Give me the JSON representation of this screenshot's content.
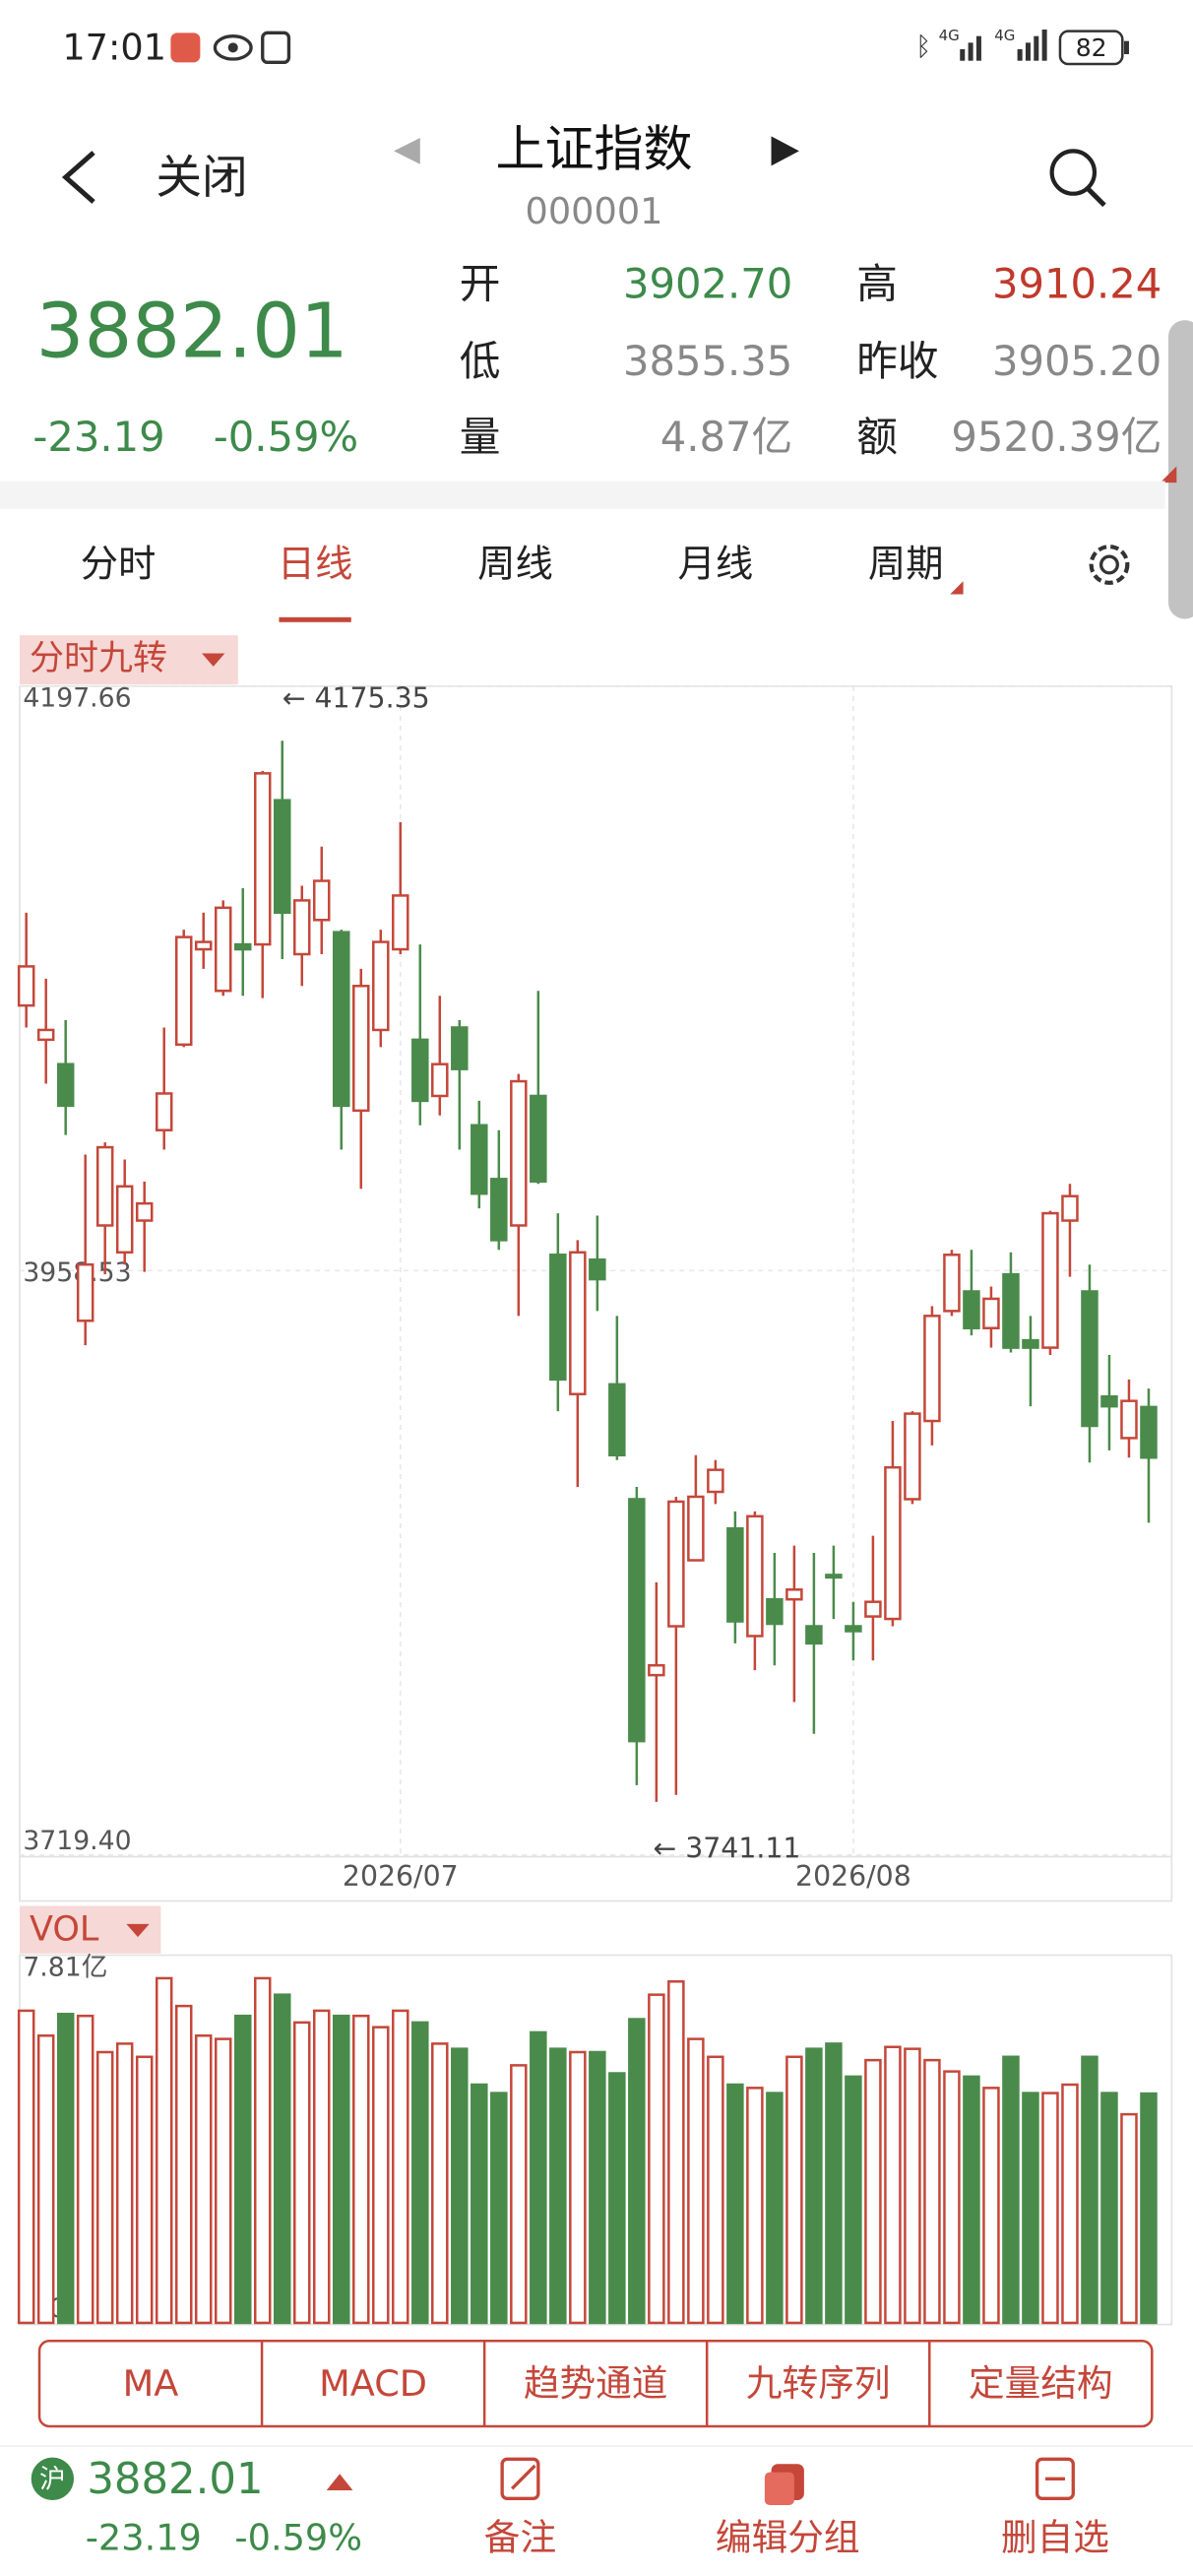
{
  "status_bar": {
    "time": "17:01",
    "network": [
      "4G",
      "4G"
    ],
    "battery": "82"
  },
  "header": {
    "back": "关闭",
    "title": "上证指数",
    "code": "000001"
  },
  "quote": {
    "price": "3882.01",
    "change": "-23.19",
    "change_pct": "-0.59%",
    "fields": [
      {
        "label": "开",
        "value": "3902.70",
        "color": "#3d8a4a"
      },
      {
        "label": "高",
        "value": "3910.24",
        "color": "#c0392b"
      },
      {
        "label": "低",
        "value": "3855.35",
        "color": "#888888"
      },
      {
        "label": "昨收",
        "value": "3905.20",
        "color": "#888888"
      },
      {
        "label": "量",
        "value": "4.87亿",
        "color": "#888888"
      },
      {
        "label": "额",
        "value": "9520.39亿",
        "color": "#888888"
      }
    ]
  },
  "tabs": [
    "分时",
    "日线",
    "周线",
    "月线",
    "周期"
  ],
  "active_tab": 1,
  "chart_data": [
    {
      "type": "candlestick",
      "indicator": "分时九转",
      "up_color": "#c4473a",
      "down_color": "#4a8b4b",
      "grid": true,
      "categories": [
        null,
        null,
        null,
        null,
        null,
        null,
        null,
        null,
        null,
        null,
        null,
        null,
        null,
        null,
        null,
        null,
        null,
        null,
        null,
        "2026/07",
        null,
        null,
        null,
        null,
        null,
        null,
        null,
        null,
        null,
        null,
        null,
        null,
        null,
        null,
        null,
        null,
        null,
        null,
        null,
        null,
        null,
        null,
        "2026/08",
        null,
        null,
        null,
        null,
        null,
        null,
        null,
        null,
        null,
        null,
        null,
        null,
        null,
        null,
        null
      ],
      "open": [
        4067,
        4053,
        4043,
        3938,
        3977,
        3966,
        3979,
        4016,
        4051,
        4090,
        4073,
        4092,
        4092,
        4151,
        4088,
        4102,
        4097,
        4024,
        4057,
        4090,
        4053,
        4030,
        4058,
        4018,
        3996,
        3977,
        4030,
        3965,
        3908,
        3963,
        3912,
        3865,
        3793,
        3813,
        3840,
        3868,
        3853,
        3809,
        3824,
        3824,
        3813,
        3834,
        3813,
        3817,
        3816,
        3865,
        3897,
        3942,
        3950,
        3935,
        3957,
        3930,
        3927,
        3979,
        3950,
        3907,
        3890,
        3902.7
      ],
      "high": [
        4105,
        4078,
        4061,
        4006,
        4011,
        4004,
        3995,
        4058,
        4098,
        4105,
        4110,
        4115,
        4163,
        4175.35,
        4116,
        4132,
        4098,
        4082,
        4098,
        4142,
        4092,
        4071,
        4061,
        4028,
        4016,
        4039,
        4073,
        3982,
        3971,
        3981,
        3940,
        3870,
        3831,
        3866,
        3883,
        3881,
        3860,
        3860,
        3843,
        3846,
        3843,
        3846,
        3823,
        3850,
        3897,
        3901,
        3944,
        3967,
        3967,
        3952,
        3966,
        3940,
        3983,
        3994,
        3961,
        3924,
        3914,
        3910.24
      ],
      "low": [
        4058,
        4035,
        4014,
        3928,
        3957,
        3961,
        3958,
        4008,
        4050,
        4082,
        4071,
        4071,
        4070,
        4086,
        4075,
        4088,
        4008,
        3992,
        4050,
        4088,
        4018,
        4022,
        4008,
        3984,
        3967,
        3940,
        3994,
        3901,
        3870,
        3942,
        3881,
        3748,
        3741.11,
        3744,
        3840,
        3863,
        3806,
        3795,
        3797,
        3782,
        3769,
        3816,
        3799,
        3799,
        3813,
        3863,
        3887,
        3940,
        3932,
        3927,
        3925,
        3903,
        3924,
        3956,
        3880,
        3885,
        3882,
        3855.35
      ],
      "close": [
        4083,
        4057,
        4026,
        3961,
        4009,
        3993,
        3986,
        4031,
        4095,
        4093,
        4107,
        4090,
        4162,
        4105,
        4110,
        4118,
        4026,
        4075,
        4093,
        4112,
        4028,
        4043,
        4041,
        3990,
        3971,
        4036,
        3995,
        3914,
        3966,
        3955,
        3883,
        3766,
        3797,
        3864,
        3866,
        3877,
        3815,
        3858,
        3814,
        3828,
        3806,
        3833,
        3811,
        3823,
        3878,
        3900,
        3940,
        3965,
        3935,
        3947,
        3927,
        3927,
        3982,
        3989,
        3895,
        3903,
        3905.2,
        3882.01
      ],
      "ylim": [
        3719.4,
        4197.66
      ],
      "yticks": [
        4197.66,
        3958.53,
        {
          "value": 3719.4,
          "label": "3719.40"
        }
      ],
      "annotations": [
        {
          "label": "← 4175.35"
        },
        {
          "label": "← 3741.11"
        }
      ]
    },
    {
      "type": "bar",
      "indicator": "VOL",
      "values": [
        6.63,
        6.1,
        6.56,
        6.52,
        5.75,
        5.93,
        5.65,
        7.32,
        6.73,
        6.1,
        6.03,
        6.52,
        7.32,
        6.97,
        6.38,
        6.63,
        6.52,
        6.52,
        6.28,
        6.63,
        6.38,
        5.93,
        5.82,
        5.06,
        4.88,
        5.47,
        6.17,
        5.82,
        5.75,
        5.75,
        5.3,
        6.45,
        6.97,
        7.25,
        6.03,
        5.65,
        5.06,
        4.99,
        4.88,
        5.65,
        5.82,
        5.93,
        5.23,
        5.58,
        5.86,
        5.82,
        5.58,
        5.34,
        5.23,
        4.99,
        5.65,
        4.88,
        4.88,
        5.06,
        5.65,
        4.88,
        4.43,
        4.87
      ],
      "ylim": [
        0,
        7.81
      ],
      "yticks": [
        {
          "value": 7.81,
          "label": "7.81亿"
        },
        0
      ]
    }
  ],
  "indicator_buttons": [
    "MA",
    "MACD",
    "趋势通道",
    "九转序列",
    "定量结构"
  ],
  "footer": {
    "badge": "沪",
    "price": "3882.01",
    "change": "-23.19",
    "change_pct": "-0.59%",
    "actions": [
      "备注",
      "编辑分组",
      "删自选"
    ]
  }
}
